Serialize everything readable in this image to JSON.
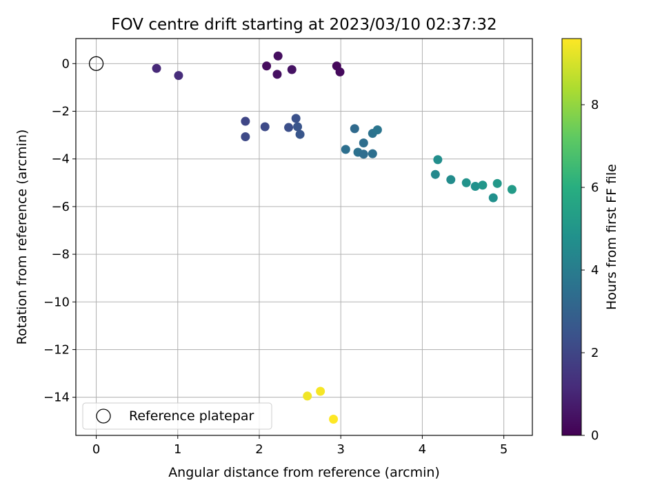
{
  "chart_data": {
    "type": "scatter",
    "title": "FOV centre drift starting at 2023/03/10 02:37:32",
    "xlabel": "Angular distance from reference (arcmin)",
    "ylabel": "Rotation from reference (arcmin)",
    "xlim": [
      -0.25,
      5.35
    ],
    "ylim": [
      -15.6,
      1.05
    ],
    "xticks": [
      0,
      1,
      2,
      3,
      4,
      5
    ],
    "yticks": [
      0,
      -2,
      -4,
      -6,
      -8,
      -10,
      -12,
      -14
    ],
    "grid": true,
    "colormap": "viridis",
    "colorbar": {
      "label": "Hours from first FF file",
      "range": [
        0,
        9.6
      ],
      "ticks": [
        0,
        2,
        4,
        6,
        8
      ]
    },
    "reference": {
      "name": "Reference platepar",
      "x": 0,
      "y": 0
    },
    "legend": {
      "placement": "lower-left",
      "entries": [
        "Reference platepar"
      ]
    },
    "points": [
      {
        "x": 0.74,
        "y": -0.2,
        "c": 1.1
      },
      {
        "x": 1.01,
        "y": -0.5,
        "c": 1.2
      },
      {
        "x": 2.09,
        "y": -0.1,
        "c": 0.3
      },
      {
        "x": 2.23,
        "y": 0.32,
        "c": 0.35
      },
      {
        "x": 2.22,
        "y": -0.45,
        "c": 0.4
      },
      {
        "x": 2.4,
        "y": -0.25,
        "c": 0.45
      },
      {
        "x": 2.95,
        "y": -0.1,
        "c": 0.2
      },
      {
        "x": 2.99,
        "y": -0.35,
        "c": 0.25
      },
      {
        "x": 1.83,
        "y": -2.42,
        "c": 2.0
      },
      {
        "x": 1.83,
        "y": -3.07,
        "c": 2.1
      },
      {
        "x": 2.07,
        "y": -2.65,
        "c": 2.15
      },
      {
        "x": 2.36,
        "y": -2.68,
        "c": 2.3
      },
      {
        "x": 2.45,
        "y": -2.3,
        "c": 2.4
      },
      {
        "x": 2.47,
        "y": -2.65,
        "c": 2.5
      },
      {
        "x": 2.5,
        "y": -2.97,
        "c": 2.55
      },
      {
        "x": 3.06,
        "y": -3.6,
        "c": 3.5
      },
      {
        "x": 3.17,
        "y": -2.73,
        "c": 3.3
      },
      {
        "x": 3.21,
        "y": -3.72,
        "c": 3.55
      },
      {
        "x": 3.28,
        "y": -3.8,
        "c": 3.4
      },
      {
        "x": 3.28,
        "y": -3.33,
        "c": 3.45
      },
      {
        "x": 3.39,
        "y": -3.78,
        "c": 3.5
      },
      {
        "x": 3.39,
        "y": -2.93,
        "c": 3.6
      },
      {
        "x": 3.45,
        "y": -2.78,
        "c": 3.7
      },
      {
        "x": 4.16,
        "y": -4.65,
        "c": 4.5
      },
      {
        "x": 4.19,
        "y": -4.03,
        "c": 4.7
      },
      {
        "x": 4.35,
        "y": -4.87,
        "c": 4.6
      },
      {
        "x": 4.54,
        "y": -5.0,
        "c": 4.9
      },
      {
        "x": 4.65,
        "y": -5.15,
        "c": 4.8
      },
      {
        "x": 4.74,
        "y": -5.1,
        "c": 5.0
      },
      {
        "x": 4.87,
        "y": -5.63,
        "c": 4.75
      },
      {
        "x": 4.92,
        "y": -5.03,
        "c": 5.1
      },
      {
        "x": 5.1,
        "y": -5.28,
        "c": 5.2
      },
      {
        "x": 2.59,
        "y": -13.95,
        "c": 9.4
      },
      {
        "x": 2.75,
        "y": -13.75,
        "c": 9.5
      },
      {
        "x": 2.91,
        "y": -14.92,
        "c": 9.6
      }
    ]
  }
}
